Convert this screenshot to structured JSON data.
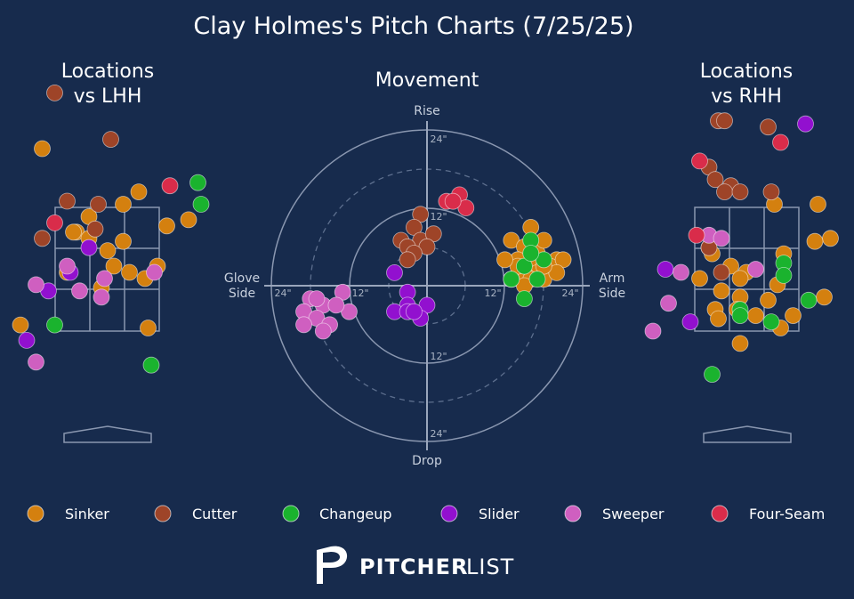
{
  "title": "Clay Holmes's Pitch Charts (7/25/25)",
  "panels": {
    "lhh_title_line1": "Locations",
    "lhh_title_line2": "vs LHH",
    "movement_title": "Movement",
    "rhh_title_line1": "Locations",
    "rhh_title_line2": "vs RHH"
  },
  "movement_axes": {
    "top": "Rise",
    "bottom": "Drop",
    "left_line1": "Glove",
    "left_line2": "Side",
    "right_line1": "Arm",
    "right_line2": "Side",
    "ring_labels": [
      "24\"",
      "12\"",
      "12\"",
      "24\"",
      "24\"",
      "12\"",
      "12\"",
      "24\""
    ]
  },
  "brand": {
    "part1": "PITCHER",
    "part2": "LIST"
  },
  "colors": {
    "background": "#172b4d",
    "Sinker": "#d4800f",
    "Cutter": "#9e4428",
    "Changeup": "#1ab32e",
    "Slider": "#9210cf",
    "Sweeper": "#cf5fc0",
    "Four-Seam": "#d92c4a"
  },
  "chart_data": [
    {
      "type": "scatter",
      "title": "Locations vs LHH",
      "series": [
        {
          "name": "Sinker",
          "points": [
            [
              -1.05,
              4.45
            ],
            [
              0.5,
              3.75
            ],
            [
              0.25,
              3.55
            ],
            [
              1.3,
              3.3
            ],
            [
              0.95,
              3.2
            ],
            [
              -0.3,
              3.35
            ],
            [
              -0.5,
              3.1
            ],
            [
              -0.3,
              3.0
            ],
            [
              0.25,
              2.95
            ],
            [
              0.8,
              2.55
            ],
            [
              0.1,
              2.55
            ],
            [
              -0.65,
              2.45
            ],
            [
              0.35,
              2.45
            ],
            [
              0.6,
              2.35
            ],
            [
              -0.1,
              2.2
            ],
            [
              -1.4,
              1.6
            ],
            [
              0.65,
              1.55
            ],
            [
              -0.55,
              3.1
            ],
            [
              0.0,
              2.8
            ]
          ]
        },
        {
          "name": "Cutter",
          "points": [
            [
              -0.85,
              5.35
            ],
            [
              0.05,
              4.6
            ],
            [
              -0.65,
              3.6
            ],
            [
              -0.15,
              3.55
            ],
            [
              -1.05,
              3.0
            ],
            [
              -0.2,
              3.15
            ]
          ]
        },
        {
          "name": "Changeup",
          "points": [
            [
              1.45,
              3.9
            ],
            [
              1.5,
              3.55
            ],
            [
              -0.85,
              1.6
            ],
            [
              0.7,
              0.95
            ]
          ]
        },
        {
          "name": "Slider",
          "points": [
            [
              -0.3,
              2.85
            ],
            [
              -0.6,
              2.45
            ],
            [
              -0.95,
              2.15
            ],
            [
              -1.3,
              1.35
            ]
          ]
        },
        {
          "name": "Sweeper",
          "points": [
            [
              -0.65,
              2.55
            ],
            [
              0.75,
              2.45
            ],
            [
              -0.05,
              2.35
            ],
            [
              -1.15,
              2.25
            ],
            [
              -0.45,
              2.15
            ],
            [
              -0.1,
              2.05
            ],
            [
              -1.15,
              1.0
            ]
          ]
        },
        {
          "name": "Four-Seam",
          "points": [
            [
              1.0,
              3.85
            ],
            [
              -0.85,
              3.25
            ]
          ]
        }
      ]
    },
    {
      "type": "scatter",
      "title": "Movement",
      "xlabel": "Glove Side / Arm Side",
      "ylabel": "Rise / Drop",
      "xlim": [
        -24,
        24
      ],
      "ylim": [
        -24,
        24
      ],
      "series": [
        {
          "name": "Sinker",
          "points": [
            [
              16,
              9
            ],
            [
              13,
              7
            ],
            [
              15,
              6
            ],
            [
              17,
              5
            ],
            [
              18,
              7
            ],
            [
              20,
              4
            ],
            [
              14,
              4
            ],
            [
              16,
              3
            ],
            [
              19,
              3
            ],
            [
              21,
              4
            ],
            [
              17,
              2
            ],
            [
              15,
              2
            ],
            [
              18,
              1
            ],
            [
              20,
              2
            ],
            [
              13,
              1
            ],
            [
              16,
              1
            ],
            [
              14,
              3
            ],
            [
              15,
              0
            ],
            [
              12,
              4
            ],
            [
              18,
              3
            ]
          ]
        },
        {
          "name": "Cutter",
          "points": [
            [
              -1,
              11
            ],
            [
              -2,
              9
            ],
            [
              -4,
              7
            ],
            [
              -1,
              7
            ],
            [
              1,
              8
            ],
            [
              -3,
              6
            ],
            [
              0,
              6
            ],
            [
              -2,
              5
            ],
            [
              -3,
              4
            ]
          ]
        },
        {
          "name": "Changeup",
          "points": [
            [
              16,
              7
            ],
            [
              18,
              4
            ],
            [
              15,
              3
            ],
            [
              13,
              1
            ],
            [
              16,
              5
            ],
            [
              17,
              1
            ],
            [
              15,
              -2
            ]
          ]
        },
        {
          "name": "Slider",
          "points": [
            [
              -5,
              2
            ],
            [
              -3,
              -1
            ],
            [
              -3,
              -3
            ],
            [
              -5,
              -4
            ],
            [
              0,
              -3
            ],
            [
              -1,
              -5
            ],
            [
              -3,
              -4
            ],
            [
              -2,
              -4
            ]
          ]
        },
        {
          "name": "Sweeper",
          "points": [
            [
              -13,
              -1
            ],
            [
              -18,
              -2
            ],
            [
              -16,
              -3
            ],
            [
              -19,
              -4
            ],
            [
              -17,
              -5
            ],
            [
              -15,
              -6
            ],
            [
              -12,
              -4
            ],
            [
              -16,
              -7
            ],
            [
              -19,
              -6
            ],
            [
              -17,
              -2
            ],
            [
              -14,
              -3
            ]
          ]
        },
        {
          "name": "Four-Seam",
          "points": [
            [
              3,
              13
            ],
            [
              5,
              14
            ],
            [
              6,
              12
            ],
            [
              4,
              13
            ]
          ]
        }
      ]
    },
    {
      "type": "scatter",
      "title": "Locations vs RHH",
      "series": [
        {
          "name": "Sinker",
          "points": [
            [
              1.15,
              3.55
            ],
            [
              0.45,
              3.55
            ],
            [
              1.35,
              3.0
            ],
            [
              1.1,
              2.95
            ],
            [
              -0.6,
              2.85
            ],
            [
              -0.55,
              2.75
            ],
            [
              0.6,
              2.75
            ],
            [
              -0.25,
              2.55
            ],
            [
              0.0,
              2.45
            ],
            [
              -0.1,
              2.35
            ],
            [
              0.5,
              2.25
            ],
            [
              -0.4,
              2.15
            ],
            [
              -0.1,
              2.05
            ],
            [
              0.35,
              2.0
            ],
            [
              -0.15,
              1.85
            ],
            [
              0.75,
              1.75
            ],
            [
              0.15,
              1.75
            ],
            [
              0.55,
              1.55
            ],
            [
              -0.1,
              1.3
            ],
            [
              -0.75,
              2.35
            ],
            [
              1.25,
              2.05
            ],
            [
              -0.5,
              1.85
            ],
            [
              -0.45,
              1.7
            ]
          ]
        },
        {
          "name": "Cutter",
          "points": [
            [
              -0.45,
              4.9
            ],
            [
              -0.35,
              4.9
            ],
            [
              0.35,
              4.8
            ],
            [
              -0.6,
              4.15
            ],
            [
              -0.5,
              3.95
            ],
            [
              -0.25,
              3.85
            ],
            [
              -0.35,
              3.75
            ],
            [
              -0.1,
              3.75
            ],
            [
              0.4,
              3.75
            ],
            [
              -0.6,
              2.85
            ],
            [
              -0.4,
              2.45
            ]
          ]
        },
        {
          "name": "Changeup",
          "points": [
            [
              0.6,
              2.6
            ],
            [
              0.6,
              2.4
            ],
            [
              -0.1,
              1.85
            ],
            [
              -0.1,
              1.75
            ],
            [
              0.4,
              1.65
            ],
            [
              1.0,
              2.0
            ],
            [
              -0.55,
              0.8
            ]
          ]
        },
        {
          "name": "Slider",
          "points": [
            [
              0.95,
              4.85
            ],
            [
              -1.3,
              2.5
            ],
            [
              -0.9,
              1.65
            ]
          ]
        },
        {
          "name": "Sweeper",
          "points": [
            [
              -0.6,
              3.05
            ],
            [
              -0.4,
              3.0
            ],
            [
              -1.05,
              2.45
            ],
            [
              0.15,
              2.5
            ],
            [
              -1.25,
              1.95
            ],
            [
              -1.5,
              1.5
            ]
          ]
        },
        {
          "name": "Four-Seam",
          "points": [
            [
              0.55,
              4.55
            ],
            [
              -0.75,
              4.25
            ],
            [
              -0.8,
              3.05
            ]
          ]
        }
      ]
    }
  ]
}
